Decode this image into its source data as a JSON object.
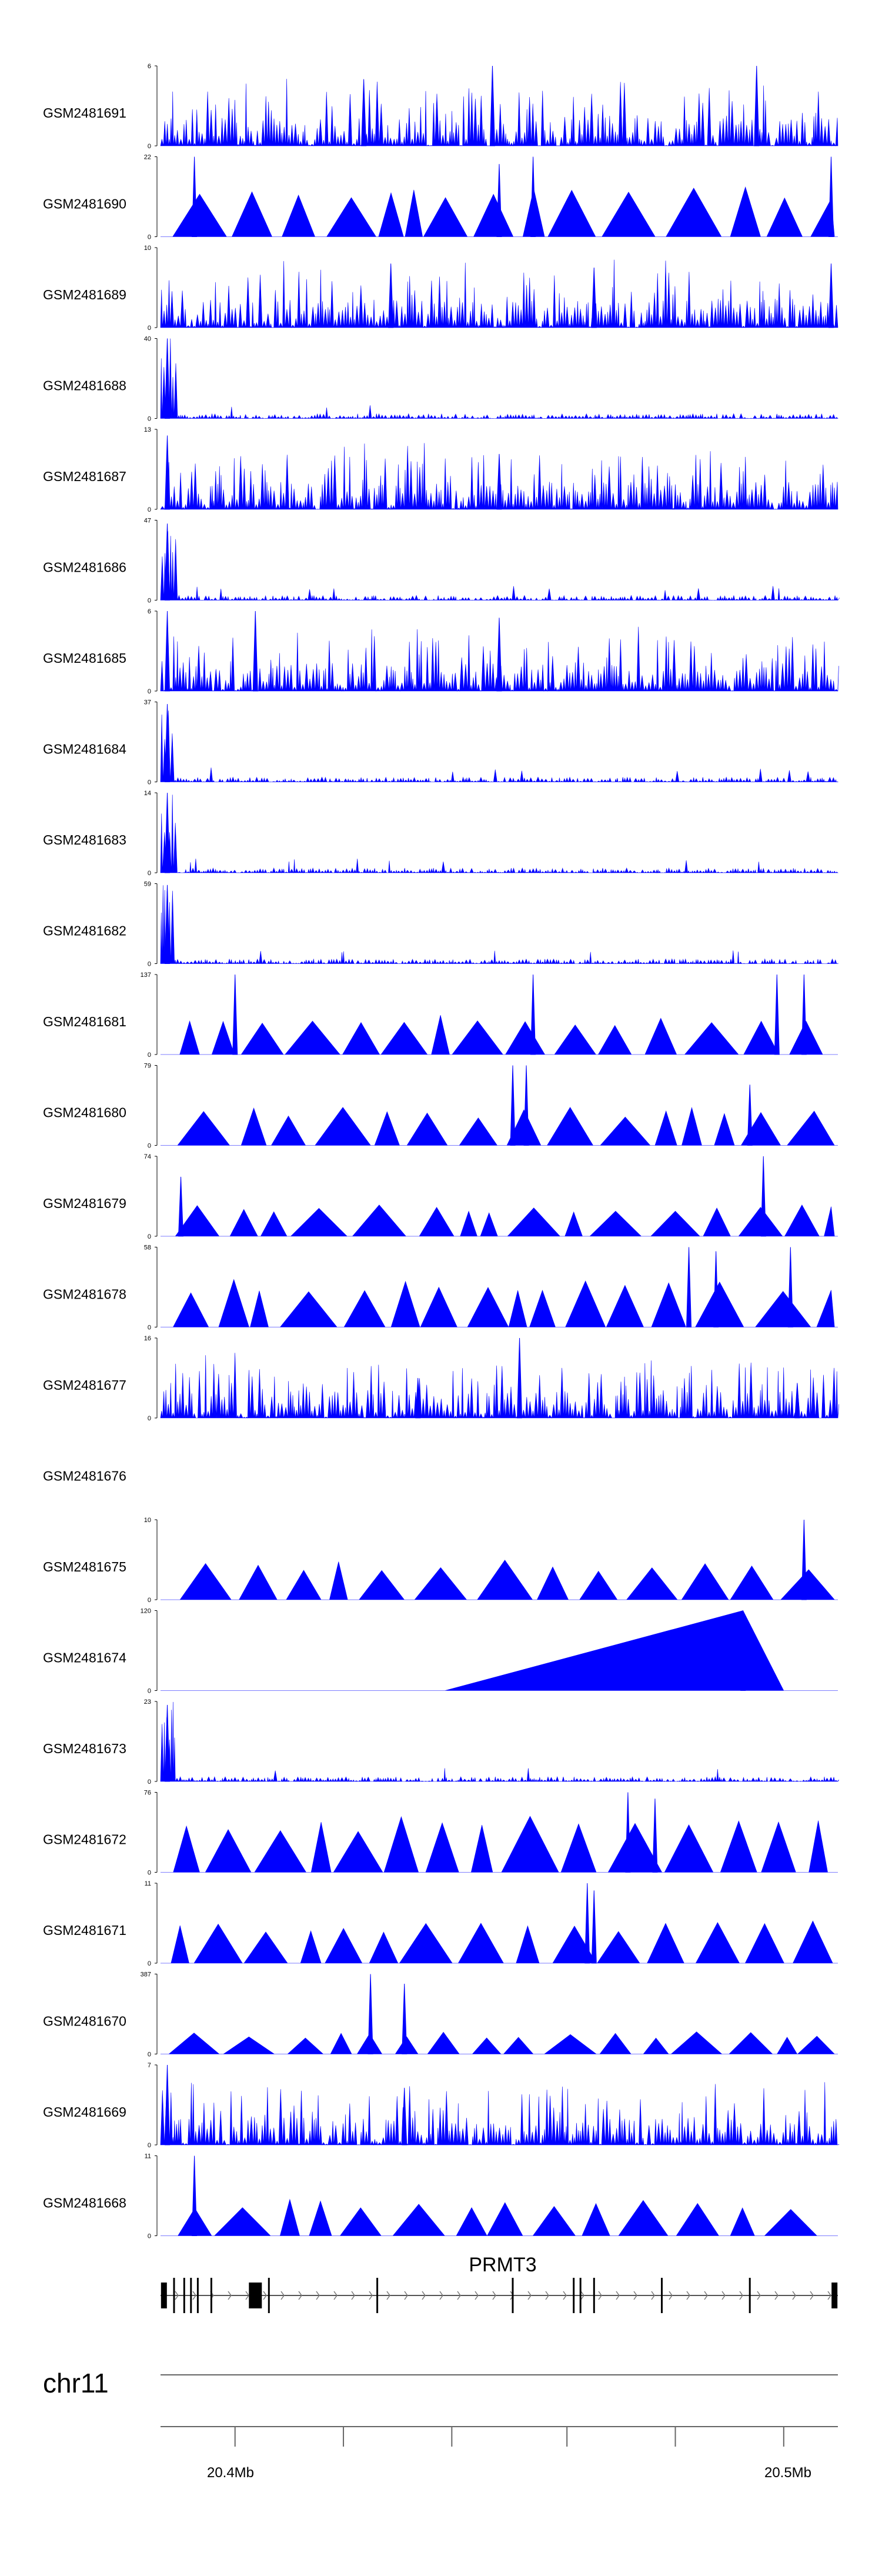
{
  "chart_data": {
    "type": "area",
    "title": "",
    "chromosome": "chr11",
    "gene": "PRMT3",
    "x_tick_labels": [
      "20.4Mb",
      "20.5Mb"
    ],
    "x_range_mb": [
      20.387,
      20.51
    ],
    "series": [
      {
        "name": "GSM2481691",
        "ymax": 6,
        "profile": "dense",
        "peaks": [
          [
            0.3,
            5
          ],
          [
            0.49,
            6.2
          ],
          [
            0.88,
            6
          ]
        ]
      },
      {
        "name": "GSM2481690",
        "ymax": 22,
        "profile": "triangles",
        "base": 14,
        "peaks": [
          [
            0.05,
            22
          ],
          [
            0.5,
            20
          ],
          [
            0.55,
            22
          ],
          [
            0.99,
            22
          ]
        ]
      },
      {
        "name": "GSM2481689",
        "ymax": 10,
        "profile": "dense",
        "peaks": [
          [
            0.34,
            8
          ],
          [
            0.64,
            7.5
          ],
          [
            0.99,
            8
          ]
        ]
      },
      {
        "name": "GSM2481688",
        "ymax": 40,
        "profile": "earlypeak",
        "peaks": [
          [
            0.01,
            40
          ]
        ]
      },
      {
        "name": "GSM2481687",
        "ymax": 13,
        "profile": "dense",
        "peaks": [
          [
            0.01,
            12
          ],
          [
            0.5,
            9
          ]
        ]
      },
      {
        "name": "GSM2481686",
        "ymax": 47,
        "profile": "earlypeak",
        "peaks": [
          [
            0.01,
            45
          ]
        ]
      },
      {
        "name": "GSM2481685",
        "ymax": 6,
        "profile": "dense",
        "peaks": [
          [
            0.01,
            6
          ],
          [
            0.14,
            6
          ],
          [
            0.5,
            5.5
          ]
        ]
      },
      {
        "name": "GSM2481684",
        "ymax": 37,
        "profile": "earlypeak",
        "peaks": [
          [
            0.01,
            36
          ]
        ]
      },
      {
        "name": "GSM2481683",
        "ymax": 14,
        "profile": "earlypeak",
        "peaks": [
          [
            0.01,
            14
          ]
        ]
      },
      {
        "name": "GSM2481682",
        "ymax": 59,
        "profile": "earlypeak",
        "peaks": [
          [
            0.01,
            58
          ]
        ]
      },
      {
        "name": "GSM2481681",
        "ymax": 137,
        "profile": "triangles",
        "base": 70,
        "peaks": [
          [
            0.11,
            137
          ],
          [
            0.55,
            137
          ],
          [
            0.91,
            137
          ],
          [
            0.95,
            137
          ]
        ]
      },
      {
        "name": "GSM2481680",
        "ymax": 79,
        "profile": "triangles",
        "base": 38,
        "peaks": [
          [
            0.52,
            79
          ],
          [
            0.54,
            79
          ],
          [
            0.87,
            60
          ]
        ]
      },
      {
        "name": "GSM2481679",
        "ymax": 74,
        "profile": "triangles",
        "base": 30,
        "peaks": [
          [
            0.03,
            55
          ],
          [
            0.89,
            74
          ]
        ]
      },
      {
        "name": "GSM2481678",
        "ymax": 58,
        "profile": "triangles",
        "base": 35,
        "peaks": [
          [
            0.78,
            58
          ],
          [
            0.82,
            55
          ],
          [
            0.93,
            58
          ]
        ]
      },
      {
        "name": "GSM2481677",
        "ymax": 16,
        "profile": "dense",
        "peaks": [
          [
            0.38,
            8
          ],
          [
            0.53,
            16
          ],
          [
            0.94,
            7
          ]
        ]
      },
      {
        "name": "GSM2481676",
        "ymax": null,
        "profile": "empty",
        "peaks": []
      },
      {
        "name": "GSM2481675",
        "ymax": 10,
        "profile": "triangles",
        "base": 5,
        "peaks": [
          [
            0.95,
            10
          ]
        ]
      },
      {
        "name": "GSM2481674",
        "ymax": 120,
        "profile": "single",
        "peaks": [
          [
            0.86,
            120
          ]
        ]
      },
      {
        "name": "GSM2481673",
        "ymax": 23,
        "profile": "earlypeak",
        "peaks": [
          [
            0.01,
            22
          ]
        ]
      },
      {
        "name": "GSM2481672",
        "ymax": 76,
        "profile": "triangles",
        "base": 55,
        "peaks": [
          [
            0.69,
            76
          ],
          [
            0.73,
            70
          ]
        ]
      },
      {
        "name": "GSM2481671",
        "ymax": 11,
        "profile": "triangles",
        "base": 6,
        "peaks": [
          [
            0.63,
            11
          ],
          [
            0.64,
            10
          ]
        ]
      },
      {
        "name": "GSM2481670",
        "ymax": 387,
        "profile": "triangles",
        "base": 110,
        "peaks": [
          [
            0.31,
            387
          ],
          [
            0.36,
            340
          ]
        ]
      },
      {
        "name": "GSM2481669",
        "ymax": 7,
        "profile": "dense",
        "peaks": [
          [
            0.01,
            7
          ],
          [
            0.36,
            5
          ]
        ]
      },
      {
        "name": "GSM2481668",
        "ymax": 11,
        "profile": "triangles",
        "base": 5,
        "peaks": [
          [
            0.05,
            11
          ]
        ]
      }
    ],
    "gene_exons_rel": [
      0.005,
      0.02,
      0.035,
      0.045,
      0.055,
      0.075,
      0.14,
      0.16,
      0.32,
      0.52,
      0.61,
      0.62,
      0.64,
      0.74,
      0.87,
      0.995
    ],
    "axis_ticks_rel": [
      0.11,
      0.27,
      0.43,
      0.6,
      0.76,
      0.92
    ]
  }
}
